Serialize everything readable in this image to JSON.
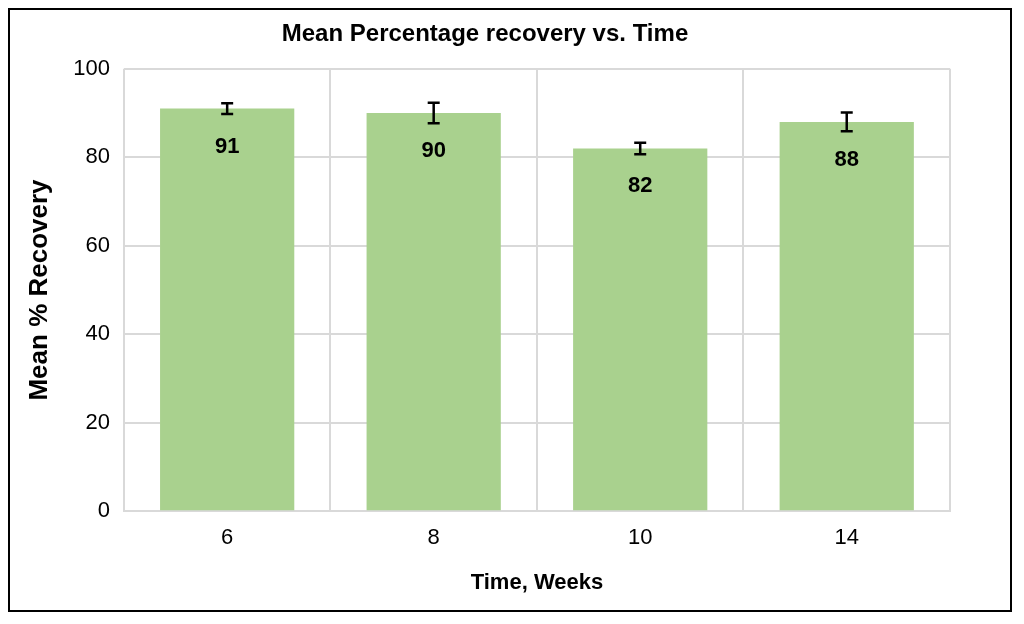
{
  "chart_data": {
    "type": "bar",
    "title": "Mean Percentage recovery vs. Time",
    "xlabel": "Time, Weeks",
    "ylabel": "Mean % Recovery",
    "categories": [
      "6",
      "8",
      "10",
      "14"
    ],
    "values": [
      91,
      90,
      82,
      88
    ],
    "errors": [
      1.2,
      2.3,
      1.3,
      2.1
    ],
    "color": "#a9d18e",
    "ylim": [
      0,
      100
    ],
    "yticks": [
      0,
      20,
      40,
      60,
      80,
      100
    ],
    "grid": true,
    "data_labels": true,
    "legend": false
  }
}
